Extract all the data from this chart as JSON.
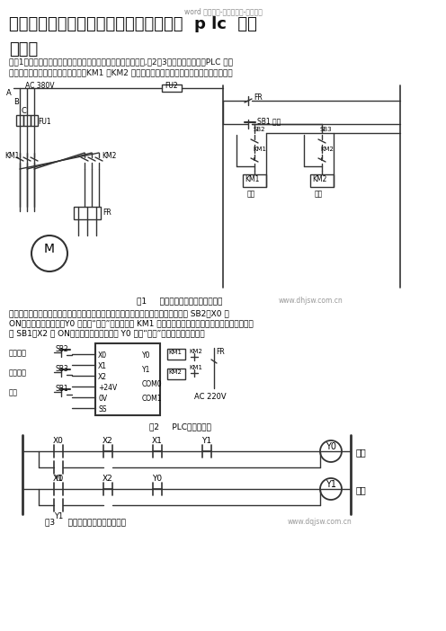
{
  "title_watermark": "word 专业资料-可复制编辑-欢迎下载",
  "title_main": "三相异步电动机正反转控制电路图原理及  p lc  接线",
  "title_sub": "与编程",
  "para1_1": "在图1是三相异步电动机正反转控制的电路和继电器控制电路图,图2与3是功能与它相同的PLC 控制",
  "para1_2": "系统的外部接线图和梯形图。其中，KM1 和KM2 分别是控制正转运行和反转运行的交流接触器。",
  "fig1_caption": "图1     异步电动机正反转控制电路图",
  "fig1_watermark": "www.dhjsw.com.cn",
  "para2_1": "在梯形图中，用两个起保停电路来分别控制电动机的正转和反转。按下正转启动按鈕 SB2，X0 变",
  "para2_2": "ON，其常开触点接通，Y0 的线圈“得电”并自保，使 KM1 的线圈通电，电机开始正转运行。按下停止按",
  "para2_3": "鈕 SB1，X2 变 ON，其常闭触点断开，使 Y0 线圈“失电”，电动机停止运行。",
  "fig2_caption": "图2     PLC外部接线图",
  "fig3_caption": "图3     异步电动机正反转控制电路",
  "fig3_watermark": "www.dqjsw.com.cn",
  "bg_color": "#ffffff",
  "text_color": "#000000",
  "line_color": "#333333"
}
